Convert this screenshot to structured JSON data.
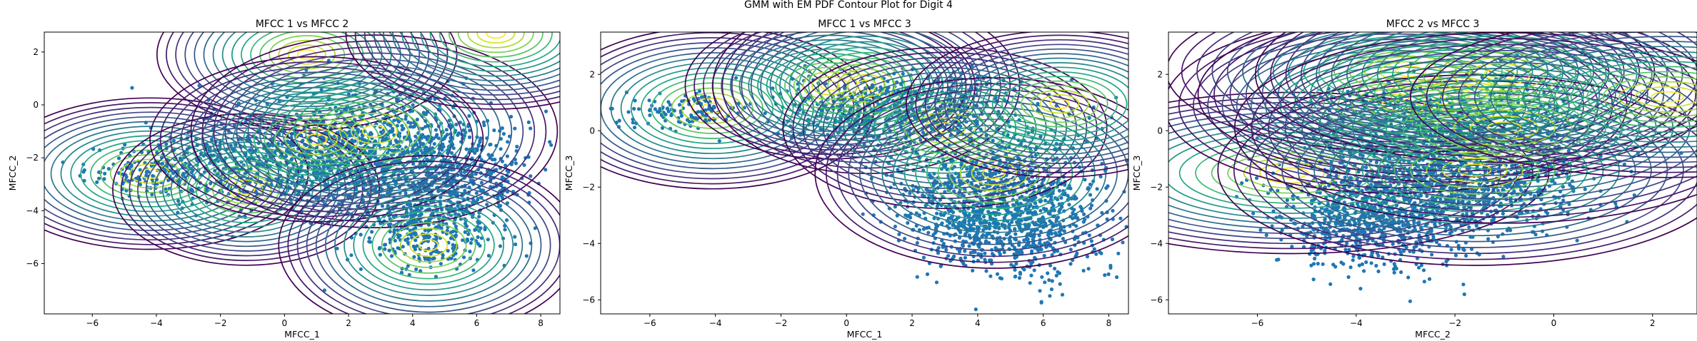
{
  "figure": {
    "suptitle": "GMM with EM PDF Contour Plot for Digit 4"
  },
  "chart_data": [
    {
      "type": "scatter",
      "title": "MFCC 1 vs MFCC 2",
      "xlabel": "MFCC_1",
      "ylabel": "MFCC_2",
      "xlim": [
        -7.5,
        8.6
      ],
      "ylim": [
        -7.9,
        2.75
      ],
      "xticks": [
        -6,
        -4,
        -2,
        0,
        2,
        4,
        6,
        8
      ],
      "yticks": [
        -6,
        -4,
        -2,
        0,
        2
      ],
      "point_color": "#1f77b4",
      "contour_colormap": "viridis",
      "components": [
        {
          "mean": [
            -4.2,
            -2.6
          ],
          "sd": [
            1.9,
            1.1
          ]
        },
        {
          "mean": [
            -1.2,
            -3.2
          ],
          "sd": [
            1.6,
            1.1
          ]
        },
        {
          "mean": [
            0.7,
            1.9
          ],
          "sd": [
            1.8,
            1.1
          ]
        },
        {
          "mean": [
            1.0,
            -1.3
          ],
          "sd": [
            2.0,
            1.2
          ]
        },
        {
          "mean": [
            2.8,
            -1.0
          ],
          "sd": [
            2.2,
            1.4
          ]
        },
        {
          "mean": [
            4.5,
            -5.3
          ],
          "sd": [
            1.8,
            1.3
          ]
        },
        {
          "mean": [
            6.6,
            2.7
          ],
          "sd": [
            1.8,
            1.1
          ]
        }
      ],
      "points": [
        {
          "mean": [
            -3.4,
            -2.5
          ],
          "sd": [
            1.4,
            0.55
          ],
          "n": 260
        },
        {
          "mean": [
            0.6,
            -2.0
          ],
          "sd": [
            1.7,
            1.0
          ],
          "n": 600
        },
        {
          "mean": [
            2.9,
            -1.6
          ],
          "sd": [
            1.4,
            1.0
          ],
          "n": 500
        },
        {
          "mean": [
            5.2,
            -2.6
          ],
          "sd": [
            1.2,
            1.2
          ],
          "n": 550
        },
        {
          "mean": [
            4.4,
            -4.7
          ],
          "sd": [
            1.0,
            0.75
          ],
          "n": 320
        }
      ]
    },
    {
      "type": "scatter",
      "title": "MFCC 1 vs MFCC 3",
      "xlabel": "MFCC_1",
      "ylabel": "MFCC_3",
      "xlim": [
        -7.5,
        8.6
      ],
      "ylim": [
        -6.5,
        3.5
      ],
      "xticks": [
        -6,
        -4,
        -2,
        0,
        2,
        4,
        6,
        8
      ],
      "yticks": [
        -6,
        -4,
        -2,
        0,
        2
      ],
      "point_color": "#1f77b4",
      "contour_colormap": "viridis",
      "components": [
        {
          "mean": [
            -4.1,
            0.8
          ],
          "sd": [
            1.9,
            1.1
          ]
        },
        {
          "mean": [
            -0.5,
            1.6
          ],
          "sd": [
            1.7,
            1.0
          ]
        },
        {
          "mean": [
            0.6,
            1.6
          ],
          "sd": [
            1.8,
            1.2
          ]
        },
        {
          "mean": [
            3.0,
            0.1
          ],
          "sd": [
            1.9,
            1.1
          ]
        },
        {
          "mean": [
            4.5,
            -1.5
          ],
          "sd": [
            2.1,
            1.3
          ]
        },
        {
          "mean": [
            6.5,
            0.95
          ],
          "sd": [
            1.8,
            1.0
          ]
        }
      ],
      "points": [
        {
          "mean": [
            -5.0,
            0.7
          ],
          "sd": [
            0.9,
            0.3
          ],
          "n": 120
        },
        {
          "mean": [
            1.4,
            0.8
          ],
          "sd": [
            1.8,
            0.6
          ],
          "n": 550
        },
        {
          "mean": [
            4.5,
            -2.3
          ],
          "sd": [
            1.5,
            1.2
          ],
          "n": 900
        },
        {
          "mean": [
            5.2,
            -3.4
          ],
          "sd": [
            1.4,
            1.0
          ],
          "n": 450
        }
      ]
    },
    {
      "type": "scatter",
      "title": "MFCC 2 vs MFCC 3",
      "xlabel": "MFCC_2",
      "ylabel": "MFCC_3",
      "xlim": [
        -7.8,
        2.9
      ],
      "ylim": [
        -6.5,
        3.5
      ],
      "xticks": [
        -6,
        -4,
        -2,
        0,
        2
      ],
      "yticks": [
        -6,
        -4,
        -2,
        0,
        2
      ],
      "point_color": "#1f77b4",
      "contour_colormap": "viridis",
      "components": [
        {
          "mean": [
            -5.3,
            -1.5
          ],
          "sd": [
            2.0,
            1.1
          ]
        },
        {
          "mean": [
            -3.2,
            0.9
          ],
          "sd": [
            1.8,
            1.2
          ]
        },
        {
          "mean": [
            -2.9,
            2.1
          ],
          "sd": [
            1.9,
            1.1
          ]
        },
        {
          "mean": [
            -2.0,
            1.3
          ],
          "sd": [
            2.0,
            1.2
          ]
        },
        {
          "mean": [
            -1.6,
            -1.4
          ],
          "sd": [
            2.0,
            1.3
          ]
        },
        {
          "mean": [
            -1.1,
            2.0
          ],
          "sd": [
            1.9,
            1.2
          ]
        },
        {
          "mean": [
            -1.0,
            0.1
          ],
          "sd": [
            2.1,
            1.3
          ]
        },
        {
          "mean": [
            2.3,
            1.2
          ],
          "sd": [
            2.0,
            1.1
          ]
        }
      ],
      "points": [
        {
          "mean": [
            -3.2,
            -2.5
          ],
          "sd": [
            1.1,
            1.1
          ],
          "n": 900
        },
        {
          "mean": [
            -1.4,
            -1.6
          ],
          "sd": [
            1.2,
            1.1
          ],
          "n": 600
        },
        {
          "mean": [
            -2.3,
            0.5
          ],
          "sd": [
            1.2,
            0.7
          ],
          "n": 400
        },
        {
          "mean": [
            -4.3,
            -3.6
          ],
          "sd": [
            0.6,
            0.7
          ],
          "n": 180
        }
      ]
    }
  ]
}
